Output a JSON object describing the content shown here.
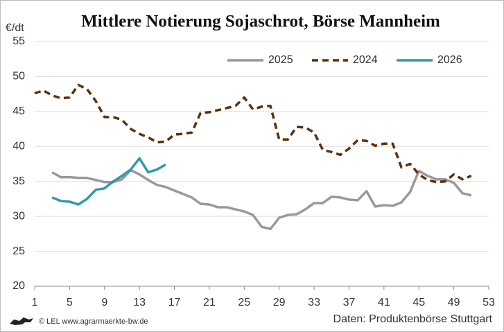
{
  "chart_data": {
    "type": "line",
    "title": "Mittlere Notierung Sojaschrot, Börse Mannheim",
    "y_label": "€/dt",
    "footer_left": "© LEL www.agrarmaerkte-bw.de",
    "footer_right": "Daten: Produktenbörse Stuttgart",
    "x": [
      1,
      2,
      3,
      4,
      5,
      6,
      7,
      8,
      9,
      10,
      11,
      12,
      13,
      14,
      15,
      16,
      17,
      18,
      19,
      20,
      21,
      22,
      23,
      24,
      25,
      26,
      27,
      28,
      29,
      30,
      31,
      32,
      33,
      34,
      35,
      36,
      37,
      38,
      39,
      40,
      41,
      42,
      43,
      44,
      45,
      46,
      47,
      48,
      49,
      50,
      51
    ],
    "series": [
      {
        "name": "2025",
        "color": "#999999",
        "line_style": "solid",
        "values": [
          null,
          null,
          36.3,
          35.6,
          35.6,
          35.5,
          35.5,
          35.2,
          34.9,
          34.9,
          35.3,
          36.6,
          36.0,
          35.2,
          34.5,
          34.2,
          33.7,
          33.2,
          32.7,
          31.8,
          31.7,
          31.3,
          31.3,
          31.0,
          30.7,
          30.2,
          28.5,
          28.2,
          29.8,
          30.2,
          30.3,
          31.0,
          31.9,
          31.9,
          32.8,
          32.7,
          32.4,
          32.3,
          33.6,
          31.4,
          31.6,
          31.5,
          32.0,
          33.5,
          36.5,
          35.8,
          35.3,
          35.3,
          34.8,
          33.3,
          33.0
        ]
      },
      {
        "name": "2024",
        "color": "#5c3008",
        "line_style": "dashed",
        "values": [
          47.6,
          48.0,
          47.3,
          46.9,
          47.0,
          48.8,
          48.2,
          46.5,
          44.2,
          44.2,
          43.8,
          42.5,
          41.8,
          41.3,
          40.6,
          40.7,
          41.7,
          41.8,
          42.0,
          44.8,
          44.9,
          45.2,
          45.5,
          45.8,
          47.0,
          45.3,
          45.7,
          45.8,
          41.0,
          41.0,
          42.8,
          42.7,
          42.0,
          39.5,
          39.2,
          38.8,
          39.7,
          40.9,
          40.8,
          40.1,
          40.4,
          40.4,
          37.0,
          37.5,
          36.0,
          35.2,
          34.9,
          35.0,
          36.0,
          35.3,
          35.8
        ]
      },
      {
        "name": "2026",
        "color": "#3399aa",
        "line_style": "solid",
        "values": [
          null,
          null,
          32.7,
          32.2,
          32.1,
          31.7,
          32.5,
          33.8,
          34.0,
          35.0,
          35.8,
          36.7,
          38.3,
          36.3,
          36.7,
          37.4,
          null,
          null,
          null,
          null,
          null,
          null,
          null,
          null,
          null,
          null,
          null,
          null,
          null,
          null,
          null,
          null,
          null,
          null,
          null,
          null,
          null,
          null,
          null,
          null,
          null,
          null,
          null,
          null,
          null,
          null,
          null,
          null,
          null,
          null,
          null
        ]
      }
    ],
    "xlim": [
      1,
      53
    ],
    "xticks": [
      1,
      5,
      9,
      13,
      17,
      21,
      25,
      29,
      33,
      37,
      41,
      45,
      49,
      53
    ],
    "ylim": [
      20,
      55
    ],
    "yticks": [
      20,
      25,
      30,
      35,
      40,
      45,
      50,
      55
    ],
    "grid": true,
    "legend": "top-right"
  }
}
